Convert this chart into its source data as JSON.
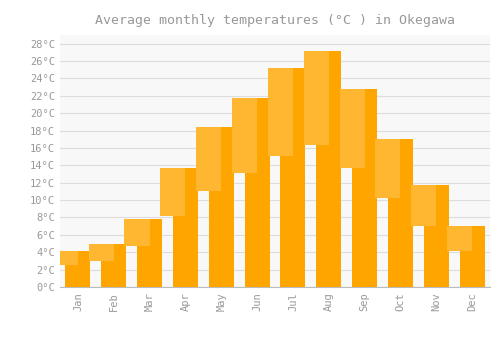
{
  "months": [
    "Jan",
    "Feb",
    "Mar",
    "Apr",
    "May",
    "Jun",
    "Jul",
    "Aug",
    "Sep",
    "Oct",
    "Nov",
    "Dec"
  ],
  "temperatures": [
    4.2,
    5.0,
    7.8,
    13.7,
    18.4,
    21.8,
    25.2,
    27.2,
    22.8,
    17.0,
    11.7,
    7.0
  ],
  "bar_color_top": "#FFB732",
  "bar_color_bottom": "#FFA500",
  "title": "Average monthly temperatures (°C ) in Okegawa",
  "ylabel_ticks": [
    0,
    2,
    4,
    6,
    8,
    10,
    12,
    14,
    16,
    18,
    20,
    22,
    24,
    26,
    28
  ],
  "ylim": [
    0,
    29
  ],
  "background_color": "#FFFFFF",
  "plot_bg_color": "#F8F8F8",
  "grid_color": "#DDDDDD",
  "title_fontsize": 9.5,
  "tick_fontsize": 7.5,
  "font_color": "#999999"
}
